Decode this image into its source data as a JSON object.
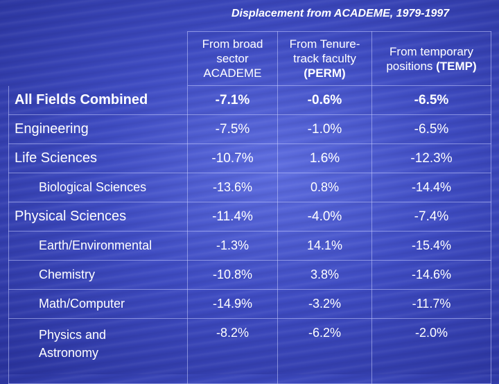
{
  "title": "Displacement from ACADEME, 1979-1997",
  "headers": [
    {
      "lines": [
        "From broad",
        "sector",
        "ACADEME"
      ],
      "bold_tail": ""
    },
    {
      "lines": [
        "From Tenure-",
        "track faculty"
      ],
      "bold_tail": "(PERM)"
    },
    {
      "lines": [
        "From temporary",
        "positions "
      ],
      "bold_tail": "(TEMP)"
    }
  ],
  "rows": [
    {
      "label": "All Fields Combined",
      "style": "major bold",
      "values": [
        "-7.1%",
        "-0.6%",
        "-6.5%"
      ]
    },
    {
      "label": "Engineering",
      "style": "major",
      "values": [
        "-7.5%",
        "-1.0%",
        "-6.5%"
      ]
    },
    {
      "label": "Life Sciences",
      "style": "major",
      "values": [
        "-10.7%",
        "1.6%",
        "-12.3%"
      ]
    },
    {
      "label": "Biological Sciences",
      "style": "minor",
      "values": [
        "-13.6%",
        "0.8%",
        "-14.4%"
      ]
    },
    {
      "label": "Physical Sciences",
      "style": "major",
      "values": [
        "-11.4%",
        "-4.0%",
        "-7.4%"
      ]
    },
    {
      "label": "Earth/Environmental",
      "style": "minor",
      "values": [
        "-1.3%",
        "14.1%",
        "-15.4%"
      ]
    },
    {
      "label": "Chemistry",
      "style": "minor",
      "values": [
        "-10.8%",
        "3.8%",
        "-14.6%"
      ]
    },
    {
      "label": "Math/Computer",
      "style": "minor",
      "values": [
        "-14.9%",
        "-3.2%",
        "-11.7%"
      ]
    },
    {
      "label": "Physics and\nAstronomy",
      "style": "minor tall",
      "values": [
        "-8.2%",
        "-6.2%",
        "-2.0%"
      ]
    }
  ]
}
